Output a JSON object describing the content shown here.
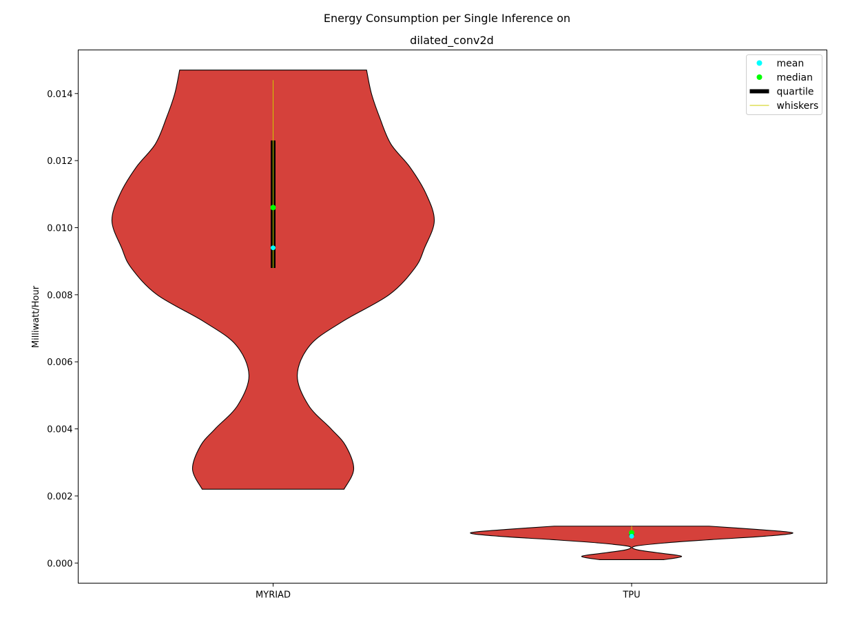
{
  "chart_data": {
    "type": "violin",
    "title": "Energy Consumption per Single Inference on",
    "subtitle": "dilated_conv2d",
    "xlabel": "",
    "ylabel": "Milliwatt/Hour",
    "categories": [
      "MYRIAD",
      "TPU"
    ],
    "ylim": [
      -0.0006,
      0.0153
    ],
    "yticks": [
      0.0,
      0.002,
      0.004,
      0.006,
      0.008,
      0.01,
      0.012,
      0.014
    ],
    "ytick_labels": [
      "0.000",
      "0.002",
      "0.004",
      "0.006",
      "0.008",
      "0.010",
      "0.012",
      "0.014"
    ],
    "grid": false,
    "legend_position": "top-right",
    "legend": [
      {
        "label": "mean",
        "kind": "dot",
        "color": "#00ffff"
      },
      {
        "label": "median",
        "kind": "dot",
        "color": "#00ff00"
      },
      {
        "label": "quartile",
        "kind": "bar",
        "color": "#000000"
      },
      {
        "label": "whiskers",
        "kind": "line",
        "color": "#cccc00"
      }
    ],
    "violin_color": "#d5413b",
    "series": [
      {
        "category": "MYRIAD",
        "min": 0.0022,
        "max": 0.0147,
        "q1": 0.0088,
        "q3": 0.0126,
        "median": 0.0106,
        "mean": 0.0094,
        "whisker_low": 0.0088,
        "whisker_high": 0.0144,
        "density_profile": [
          [
            0.0022,
            0.44
          ],
          [
            0.0028,
            0.5
          ],
          [
            0.0035,
            0.45
          ],
          [
            0.004,
            0.36
          ],
          [
            0.0047,
            0.22
          ],
          [
            0.0056,
            0.15
          ],
          [
            0.0065,
            0.23
          ],
          [
            0.0072,
            0.43
          ],
          [
            0.008,
            0.72
          ],
          [
            0.0088,
            0.88
          ],
          [
            0.0094,
            0.94
          ],
          [
            0.0102,
            1.0
          ],
          [
            0.011,
            0.95
          ],
          [
            0.0118,
            0.85
          ],
          [
            0.0125,
            0.73
          ],
          [
            0.0133,
            0.66
          ],
          [
            0.014,
            0.61
          ],
          [
            0.0147,
            0.58
          ]
        ]
      },
      {
        "category": "TPU",
        "min": 0.0001,
        "max": 0.0011,
        "q1": 0.0008,
        "q3": 0.0009,
        "median": 0.0009,
        "mean": 0.0008,
        "whisker_low": 0.0008,
        "whisker_high": 0.0011,
        "density_profile": [
          [
            0.0001,
            0.2
          ],
          [
            0.0002,
            0.31
          ],
          [
            0.0003,
            0.17
          ],
          [
            0.0004,
            0.03
          ],
          [
            0.0005,
            0.02
          ],
          [
            0.0006,
            0.21
          ],
          [
            0.0007,
            0.5
          ],
          [
            0.0008,
            0.83
          ],
          [
            0.0009,
            1.0
          ],
          [
            0.001,
            0.78
          ],
          [
            0.0011,
            0.48
          ]
        ]
      }
    ]
  }
}
